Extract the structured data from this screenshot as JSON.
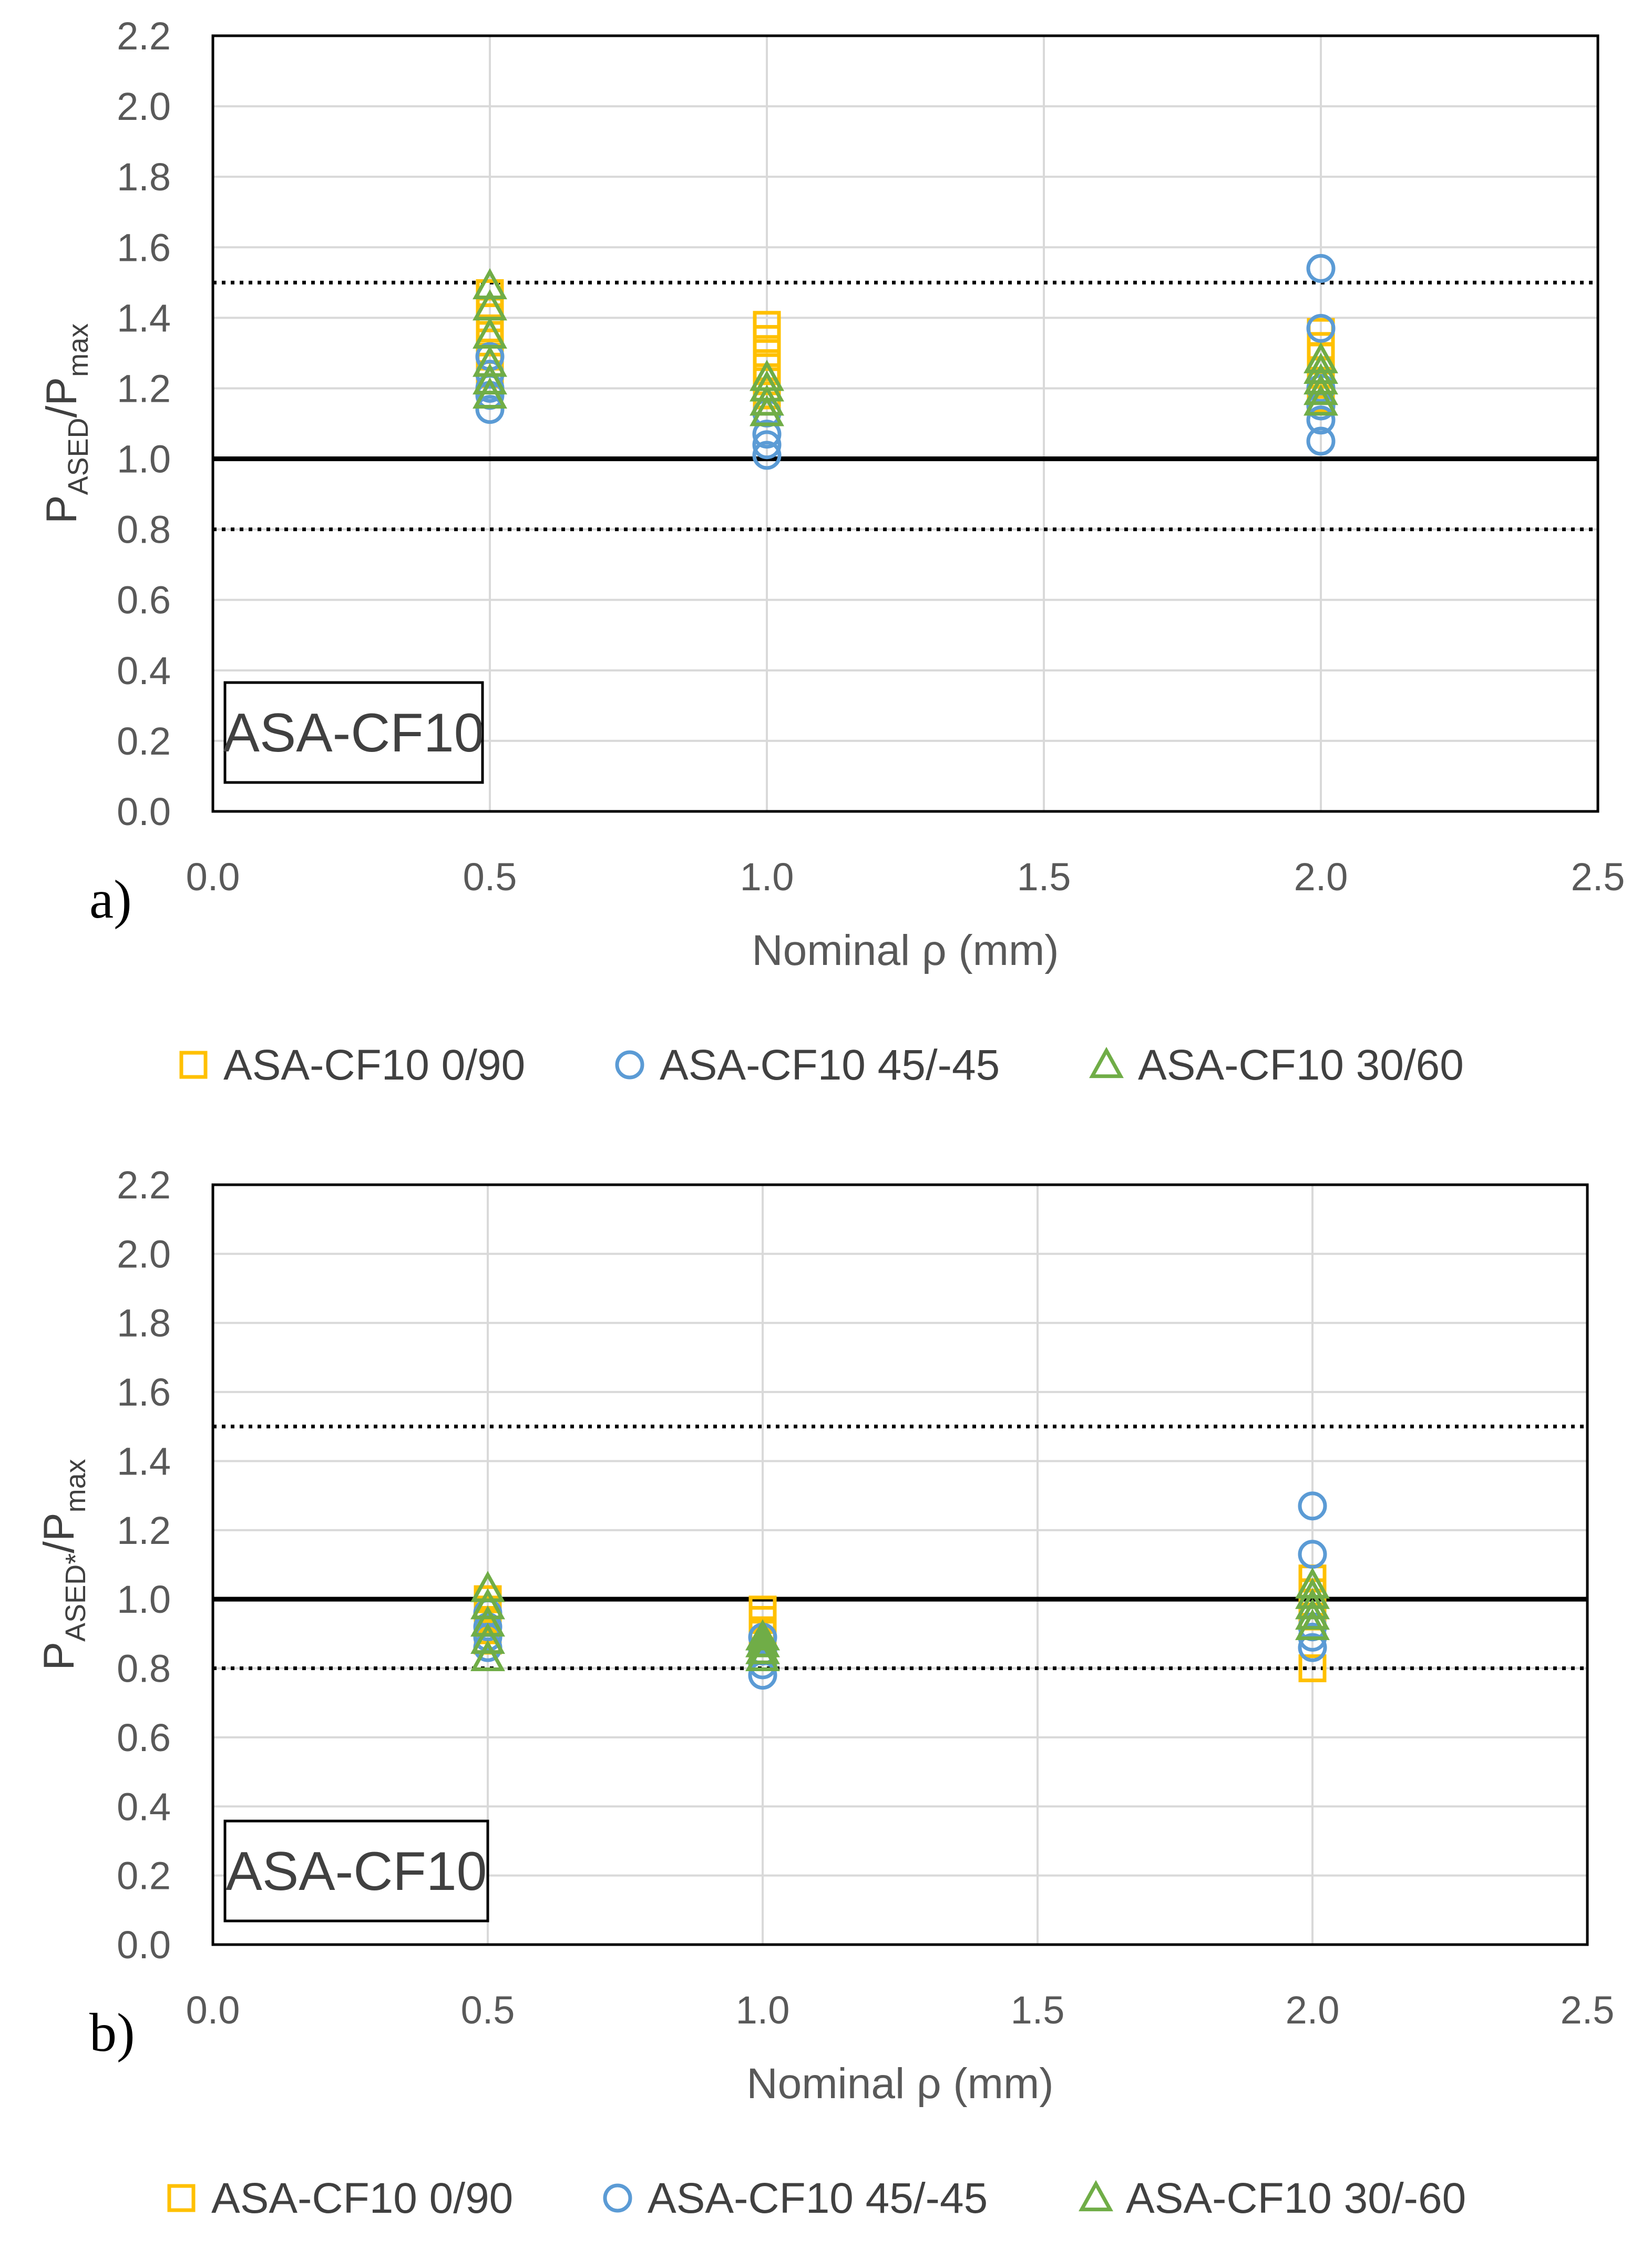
{
  "colors": {
    "orange": "#FFC000",
    "blue": "#5B9BD5",
    "green": "#70AD47",
    "grid": "#D9D9D9",
    "axis_text": "#595959",
    "frame": "#000000"
  },
  "chart_data": [
    {
      "type": "scatter",
      "panel_label": "a)",
      "box_label": "ASA-CF10",
      "xlabel": "Nominal ρ (mm)",
      "ylabel": {
        "main": "P",
        "sub1": "ASED",
        "mid": "/P",
        "sub2": "max"
      },
      "xlim": [
        0,
        2.5
      ],
      "ylim": [
        0,
        2.2
      ],
      "xticks": [
        "0.0",
        "0.5",
        "1.0",
        "1.5",
        "2.0",
        "2.5"
      ],
      "yticks": [
        "0.0",
        "0.2",
        "0.4",
        "0.6",
        "0.8",
        "1.0",
        "1.2",
        "1.4",
        "1.6",
        "1.8",
        "2.0",
        "2.2"
      ],
      "reference_lines": [
        {
          "y": 1.0,
          "style": "solid"
        },
        {
          "y": 1.5,
          "style": "dotted"
        },
        {
          "y": 0.8,
          "style": "dotted"
        }
      ],
      "series": [
        {
          "name": "ASA-CF10 0/90",
          "marker": "square",
          "color": "#FFC000",
          "points": [
            [
              0.5,
              1.47
            ],
            [
              0.5,
              1.42
            ],
            [
              0.5,
              1.37
            ],
            [
              0.5,
              1.33
            ],
            [
              0.5,
              1.29
            ],
            [
              0.5,
              1.24
            ],
            [
              1.0,
              1.38
            ],
            [
              1.0,
              1.34
            ],
            [
              1.0,
              1.3
            ],
            [
              1.0,
              1.26
            ],
            [
              1.0,
              1.22
            ],
            [
              1.0,
              1.18
            ],
            [
              2.0,
              1.36
            ],
            [
              2.0,
              1.32
            ],
            [
              2.0,
              1.29
            ],
            [
              2.0,
              1.25
            ],
            [
              2.0,
              1.21
            ],
            [
              2.0,
              1.17
            ]
          ]
        },
        {
          "name": "ASA-CF10 45/-45",
          "marker": "circle",
          "color": "#5B9BD5",
          "points": [
            [
              0.5,
              1.29
            ],
            [
              0.5,
              1.24
            ],
            [
              0.5,
              1.2
            ],
            [
              0.5,
              1.18
            ],
            [
              0.5,
              1.14
            ],
            [
              1.0,
              1.13
            ],
            [
              1.0,
              1.07
            ],
            [
              1.0,
              1.04
            ],
            [
              1.0,
              1.01
            ],
            [
              2.0,
              1.54
            ],
            [
              2.0,
              1.37
            ],
            [
              2.0,
              1.2
            ],
            [
              2.0,
              1.15
            ],
            [
              2.0,
              1.11
            ],
            [
              2.0,
              1.05
            ]
          ]
        },
        {
          "name": "ASA-CF10 30/60",
          "marker": "triangle",
          "color": "#70AD47",
          "points": [
            [
              0.5,
              1.49
            ],
            [
              0.5,
              1.43
            ],
            [
              0.5,
              1.35
            ],
            [
              0.5,
              1.27
            ],
            [
              0.5,
              1.22
            ],
            [
              0.5,
              1.18
            ],
            [
              1.0,
              1.23
            ],
            [
              1.0,
              1.2
            ],
            [
              1.0,
              1.16
            ],
            [
              1.0,
              1.13
            ],
            [
              2.0,
              1.28
            ],
            [
              2.0,
              1.25
            ],
            [
              2.0,
              1.22
            ],
            [
              2.0,
              1.19
            ],
            [
              2.0,
              1.16
            ]
          ]
        }
      ]
    },
    {
      "type": "scatter",
      "panel_label": "b)",
      "box_label": "ASA-CF10",
      "xlabel": "Nominal ρ (mm)",
      "ylabel": {
        "main": "P",
        "sub1": "ASED*",
        "mid": "/P",
        "sub2": "max"
      },
      "xlim": [
        0,
        2.5
      ],
      "ylim": [
        0,
        2.2
      ],
      "xticks": [
        "0.0",
        "0.5",
        "1.0",
        "1.5",
        "2.0",
        "2.5"
      ],
      "yticks": [
        "0.0",
        "0.2",
        "0.4",
        "0.6",
        "0.8",
        "1.0",
        "1.2",
        "1.4",
        "1.6",
        "1.8",
        "2.0",
        "2.2"
      ],
      "reference_lines": [
        {
          "y": 1.0,
          "style": "solid"
        },
        {
          "y": 1.5,
          "style": "dotted"
        },
        {
          "y": 0.8,
          "style": "dotted"
        }
      ],
      "series": [
        {
          "name": "ASA-CF10 0/90",
          "marker": "square",
          "color": "#FFC000",
          "points": [
            [
              0.5,
              1.0
            ],
            [
              0.5,
              0.97
            ],
            [
              0.5,
              0.94
            ],
            [
              0.5,
              0.91
            ],
            [
              0.5,
              0.88
            ],
            [
              1.0,
              0.97
            ],
            [
              1.0,
              0.94
            ],
            [
              1.0,
              0.91
            ],
            [
              1.0,
              0.88
            ],
            [
              1.0,
              0.85
            ],
            [
              2.0,
              1.06
            ],
            [
              2.0,
              1.02
            ],
            [
              2.0,
              0.99
            ],
            [
              2.0,
              0.95
            ],
            [
              2.0,
              0.8
            ]
          ]
        },
        {
          "name": "ASA-CF10 45/-45",
          "marker": "circle",
          "color": "#5B9BD5",
          "points": [
            [
              0.5,
              0.96
            ],
            [
              0.5,
              0.92
            ],
            [
              0.5,
              0.89
            ],
            [
              0.5,
              0.86
            ],
            [
              1.0,
              0.89
            ],
            [
              1.0,
              0.85
            ],
            [
              1.0,
              0.81
            ],
            [
              1.0,
              0.78
            ],
            [
              2.0,
              1.27
            ],
            [
              2.0,
              1.13
            ],
            [
              2.0,
              0.92
            ],
            [
              2.0,
              0.89
            ],
            [
              2.0,
              0.86
            ]
          ]
        },
        {
          "name": "ASA-CF10 30/-60",
          "marker": "triangle",
          "color": "#70AD47",
          "points": [
            [
              0.5,
              1.03
            ],
            [
              0.5,
              0.98
            ],
            [
              0.5,
              0.93
            ],
            [
              0.5,
              0.88
            ],
            [
              0.5,
              0.83
            ],
            [
              1.0,
              0.89
            ],
            [
              1.0,
              0.87
            ],
            [
              1.0,
              0.85
            ],
            [
              1.0,
              0.83
            ],
            [
              2.0,
              1.04
            ],
            [
              2.0,
              1.01
            ],
            [
              2.0,
              0.98
            ],
            [
              2.0,
              0.95
            ],
            [
              2.0,
              0.92
            ]
          ]
        }
      ]
    }
  ]
}
